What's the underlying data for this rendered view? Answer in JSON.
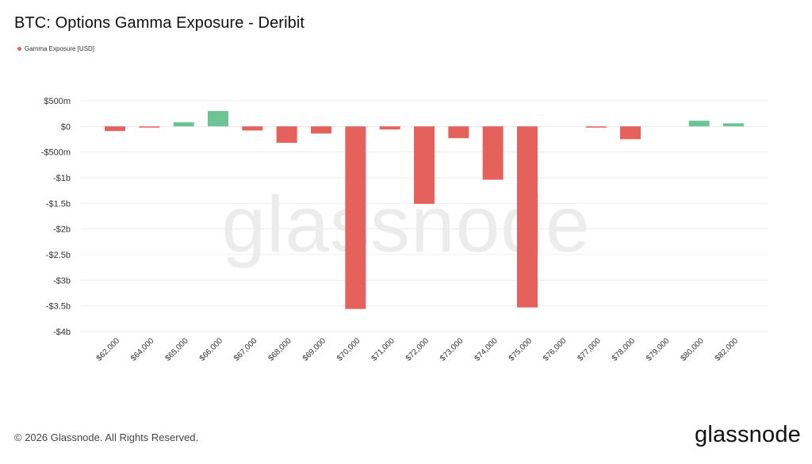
{
  "title": "BTC: Options Gamma Exposure - Deribit",
  "legend": {
    "label": "Gamma Exposure [USD]",
    "color": "#e5625c"
  },
  "watermark": "glassnode",
  "footer": "© 2026 Glassnode. All Rights Reserved.",
  "brand": "glassnode",
  "colors": {
    "negative": "#e5625c",
    "positive": "#6cc494",
    "grid": "#ececec",
    "axis_text": "#333333"
  },
  "chart_data": {
    "type": "bar",
    "title": "BTC: Options Gamma Exposure - Deribit",
    "xlabel": "",
    "ylabel": "",
    "ylim": [
      -4000000000,
      500000000
    ],
    "yticks": [
      500000000,
      0,
      -500000000,
      -1000000000,
      -1500000000,
      -2000000000,
      -2500000000,
      -3000000000,
      -3500000000,
      -4000000000
    ],
    "ytick_labels": [
      "$500m",
      "$0",
      "-$500m",
      "-$1b",
      "-$1.5b",
      "-$2b",
      "-$2.5b",
      "-$3b",
      "-$3.5b",
      "-$4b"
    ],
    "grid": true,
    "legend_position": "top-left",
    "categories": [
      "$62,000",
      "$64,000",
      "$65,000",
      "$66,000",
      "$67,000",
      "$68,000",
      "$69,000",
      "$70,000",
      "$71,000",
      "$72,000",
      "$73,000",
      "$74,000",
      "$75,000",
      "$76,000",
      "$77,000",
      "$78,000",
      "$79,000",
      "$80,000",
      "$82,000"
    ],
    "series": [
      {
        "name": "Gamma Exposure [USD]",
        "values": [
          -90000000,
          -15000000,
          80000000,
          300000000,
          -80000000,
          -320000000,
          -140000000,
          -3560000000,
          -60000000,
          -1510000000,
          -230000000,
          -1040000000,
          -3530000000,
          0,
          -20000000,
          -250000000,
          0,
          110000000,
          60000000
        ]
      }
    ]
  }
}
